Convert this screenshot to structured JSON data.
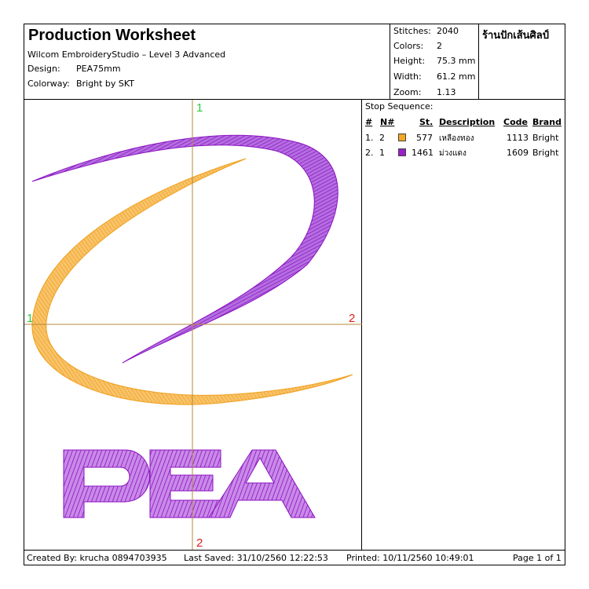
{
  "header": {
    "title": "Production Worksheet",
    "subtitle": "Wilcom EmbroideryStudio – Level 3 Advanced",
    "design_label": "Design:",
    "design_value": "PEA75mm",
    "colorway_label": "Colorway:",
    "colorway_value": "Bright by SKT",
    "shop_name": "ร้านปักเส้นศิลป์"
  },
  "stats": {
    "stitches_label": "Stitches:",
    "stitches_value": "2040",
    "colors_label": "Colors:",
    "colors_value": "2",
    "height_label": "Height:",
    "height_value": "75.3 mm",
    "width_label": "Width:",
    "width_value": "61.2 mm",
    "zoom_label": "Zoom:",
    "zoom_value": "1.13"
  },
  "sequence": {
    "title": "Stop Sequence:",
    "headers": {
      "num": "#",
      "n": "N#",
      "st": "St.",
      "description": "Description",
      "code": "Code",
      "brand": "Brand"
    },
    "rows": [
      {
        "num": "1.",
        "n": "2",
        "color": "#f5a623",
        "st": "577",
        "description": "เหลืองทอง",
        "code": "1113",
        "brand": "Bright"
      },
      {
        "num": "2.",
        "n": "1",
        "color": "#9a1fc8",
        "st": "1461",
        "description": "ม่วงแดง",
        "code": "1609",
        "brand": "Bright"
      }
    ]
  },
  "design": {
    "marker_top": "1",
    "marker_left": "1",
    "marker_right": "2",
    "marker_bottom": "2",
    "logo_text": "PEA",
    "colors": {
      "orange": "#f5a623",
      "purple": "#9a1fc8",
      "axis": "#b58a3c",
      "marker_green": "#2ecc40",
      "marker_red": "#e0201b"
    }
  },
  "footer": {
    "created": "Created By: krucha 0894703935",
    "saved": "Last Saved: 31/10/2560 12:22:53",
    "printed": "Printed: 10/11/2560 10:49:01",
    "page": "Page 1 of 1"
  }
}
